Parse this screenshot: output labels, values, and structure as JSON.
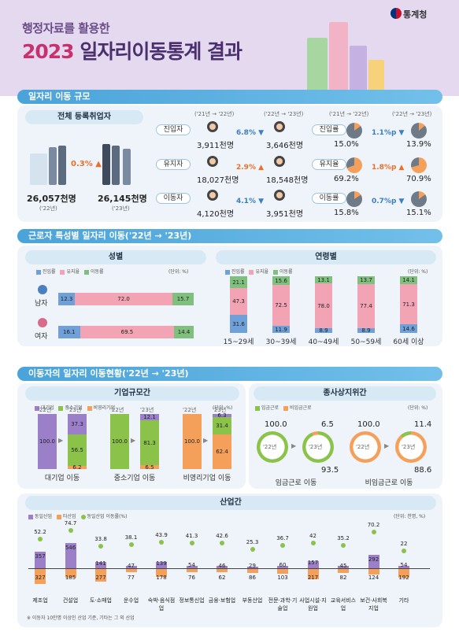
{
  "header": {
    "subtitle": "행정자료를 활용한",
    "year": "2023",
    "title": "일자리이동통계 결과",
    "brand": "통계청"
  },
  "sec1": {
    "title": "일자리 이동 규모",
    "registered": "전체 등록취업자",
    "left_value": "26,057천명",
    "left_year": "('22년)",
    "right_value": "26,145천명",
    "right_year": "('23년)",
    "growth": "0.3%",
    "period_a": "('21년 → '22년)",
    "period_b": "('22년 → '23년)",
    "rows": [
      {
        "label": "진입자",
        "a": "3,911천명",
        "change": "6.8%",
        "b": "3,646천명",
        "rate_label": "진입률",
        "ra": "15.0%",
        "rchange": "1.1%p",
        "rb": "13.9%",
        "ra_v": 15.0,
        "rb_v": 13.9
      },
      {
        "label": "유지자",
        "a": "18,027천명",
        "change": "2.9%",
        "b": "18,548천명",
        "rate_label": "유지율",
        "ra": "69.2%",
        "rchange": "1.8%p",
        "rb": "70.9%",
        "ra_v": 69.2,
        "rb_v": 70.9
      },
      {
        "label": "이동자",
        "a": "4,120천명",
        "change": "4.1%",
        "b": "3,951천명",
        "rate_label": "이동률",
        "ra": "15.8%",
        "rchange": "0.7%p",
        "rb": "15.1%",
        "ra_v": 15.8,
        "rb_v": 15.1
      }
    ]
  },
  "sec2": {
    "title": "근로자 특성별 일자리 이동('22년 → '23년)",
    "gender_title": "성별",
    "age_title": "연령별",
    "unit": "(단위: %)",
    "legend": [
      "진입률",
      "유지율",
      "이동률"
    ],
    "gender": [
      {
        "name": "남자",
        "v": [
          12.3,
          72.0,
          15.7
        ],
        "l": [
          "12.3",
          "72.0",
          "15.7"
        ]
      },
      {
        "name": "여자",
        "v": [
          16.1,
          69.5,
          14.4
        ],
        "l": [
          "16.1",
          "69.5",
          "14.4"
        ]
      }
    ],
    "age": [
      {
        "name": "15~29세",
        "v": [
          31.6,
          47.3,
          21.1
        ],
        "l": [
          "31.6",
          "47.3",
          "21.1"
        ]
      },
      {
        "name": "30~39세",
        "v": [
          11.9,
          72.5,
          15.6
        ],
        "l": [
          "11.9",
          "72.5",
          "15.6"
        ]
      },
      {
        "name": "40~49세",
        "v": [
          8.9,
          78.0,
          13.1
        ],
        "l": [
          "8.9",
          "78.0",
          "13.1"
        ]
      },
      {
        "name": "50~59세",
        "v": [
          8.9,
          77.4,
          13.7
        ],
        "l": [
          "8.9",
          "77.4",
          "13.7"
        ]
      },
      {
        "name": "60세 이상",
        "v": [
          14.6,
          71.3,
          14.1
        ],
        "l": [
          "14.6",
          "71.3",
          "14.1"
        ]
      }
    ]
  },
  "sec3": {
    "title": "이동자의 일자리 이동현황('22년 → '23년)",
    "size_title": "기업규모간",
    "status_title": "종사상지위간",
    "unit": "(단위: %)",
    "size_legend": [
      "대기업",
      "중소기업",
      "비영리기업"
    ],
    "status_legend": [
      "임금근로",
      "비임금근로"
    ],
    "y22": "'22년",
    "y23": "'23년",
    "size": [
      {
        "name": "대기업 이동",
        "from": "100.0",
        "v": [
          37.3,
          56.5,
          6.2
        ],
        "l": [
          "37.3",
          "56.5",
          "6.2"
        ]
      },
      {
        "name": "중소기업 이동",
        "from": "100.0",
        "v": [
          12.1,
          81.3,
          6.5
        ],
        "l": [
          "12.1",
          "81.3",
          "6.5"
        ]
      },
      {
        "name": "비영리기업 이동",
        "from": "100.0",
        "v": [
          6.3,
          31.4,
          62.4
        ],
        "l": [
          "6.3",
          "31.4",
          "62.4"
        ]
      }
    ],
    "status": [
      {
        "name": "임금근로 이동",
        "from": "100.0",
        "top": "6.5",
        "bottom": "93.5",
        "main": 93.5
      },
      {
        "name": "비임금근로 이동",
        "from": "100.0",
        "top": "11.4",
        "bottom": "88.6",
        "main": 88.6
      }
    ],
    "industry_title": "산업간",
    "industry_unit": "(단위: 천명, %)",
    "industry_legend": [
      "동일산업",
      "타산업",
      "동일산업 이동률(%)"
    ],
    "industries": [
      {
        "name": "제조업",
        "same": 357,
        "other": 327,
        "rate": 52.2
      },
      {
        "name": "건설업",
        "same": 546,
        "other": 185,
        "rate": 74.7
      },
      {
        "name": "도·소매업",
        "same": 141,
        "other": 277,
        "rate": 33.8
      },
      {
        "name": "운수업",
        "same": 47,
        "other": 77,
        "rate": 38.1
      },
      {
        "name": "숙박·음식점업",
        "same": 139,
        "other": 178,
        "rate": 43.9
      },
      {
        "name": "정보통신업",
        "same": 54,
        "other": 76,
        "rate": 41.3
      },
      {
        "name": "금융·보험업",
        "same": 46,
        "other": 62,
        "rate": 42.6
      },
      {
        "name": "부동산업",
        "same": 29,
        "other": 86,
        "rate": 25.3
      },
      {
        "name": "전문·과학·기술업",
        "same": 60,
        "other": 103,
        "rate": 36.7
      },
      {
        "name": "사업시설·지원업",
        "same": 157,
        "other": 217,
        "rate": 42.0
      },
      {
        "name": "교육서비스업",
        "same": 45,
        "other": 82,
        "rate": 35.2
      },
      {
        "name": "보건·사회복지업",
        "same": 292,
        "other": 124,
        "rate": 70.2
      },
      {
        "name": "기타",
        "same": 54,
        "other": 192,
        "rate": 22.0
      }
    ],
    "footnote": "※ 이동자 10만명 이상인 산업 기준, 기타는 그 외 산업"
  },
  "colors": {
    "blue": "#6fa0d8",
    "pink": "#f2a3b4",
    "green": "#7fc07e",
    "purple": "#9b7fc8",
    "lime": "#8ac24a",
    "orange": "#f5a05a",
    "teal": "#4aa3d9"
  }
}
